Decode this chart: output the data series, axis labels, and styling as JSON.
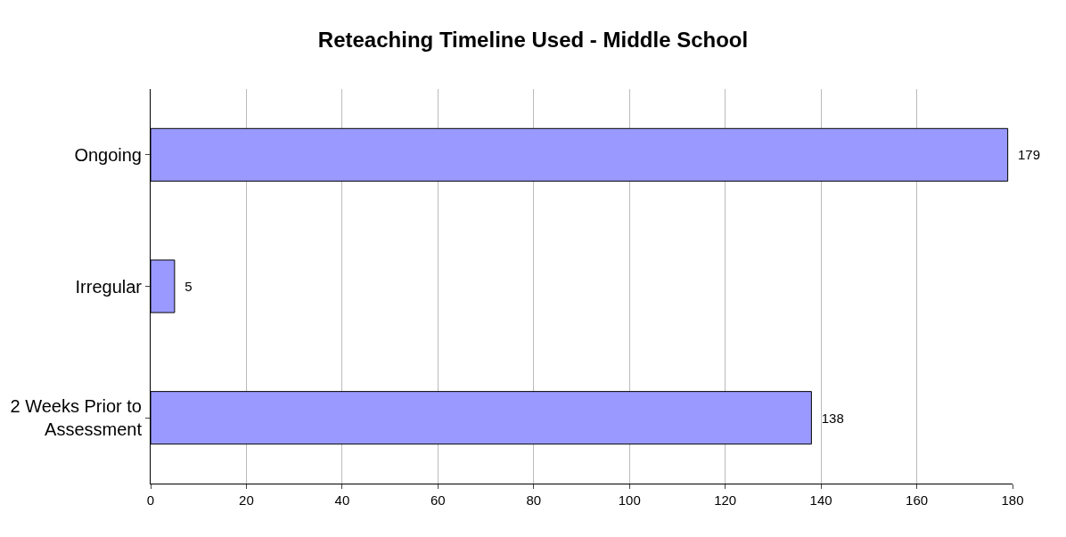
{
  "chart_data": {
    "type": "bar",
    "orientation": "horizontal",
    "title": "Reteaching Timeline Used - Middle School",
    "categories": [
      "Ongoing",
      "Irregular",
      "2 Weeks Prior to Assessment"
    ],
    "values": [
      179,
      5,
      138
    ],
    "color": "#9999ff",
    "xlim": [
      0,
      180
    ],
    "xticks": [
      0,
      20,
      40,
      60,
      80,
      100,
      120,
      140,
      160,
      180
    ],
    "grid": "x",
    "data_labels": true
  }
}
